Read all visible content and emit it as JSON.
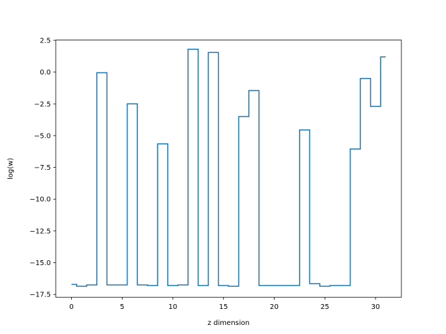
{
  "chart_data": {
    "type": "line",
    "drawstyle": "steps-mid",
    "xlabel": "z dimension",
    "ylabel": "log(w)",
    "xlim": [
      -1.55,
      32.55
    ],
    "ylim": [
      -17.72,
      2.52
    ],
    "xticks": [
      0,
      5,
      10,
      15,
      20,
      25,
      30
    ],
    "xtick_labels": [
      "0",
      "5",
      "10",
      "15",
      "20",
      "25",
      "30"
    ],
    "yticks": [
      2.5,
      0.0,
      -2.5,
      -5.0,
      -7.5,
      -10.0,
      -12.5,
      -15.0,
      -17.5
    ],
    "ytick_labels": [
      "2.5",
      "0.0",
      "−2.5",
      "−5.0",
      "−7.5",
      "−10.0",
      "−12.5",
      "−15.0",
      "−17.5"
    ],
    "grid": false,
    "color": "#1f77b4",
    "x": [
      0,
      1,
      2,
      3,
      4,
      5,
      6,
      7,
      8,
      9,
      10,
      11,
      12,
      13,
      14,
      15,
      16,
      17,
      18,
      19,
      20,
      21,
      22,
      23,
      24,
      25,
      26,
      27,
      28,
      29,
      30,
      31
    ],
    "values": [
      -16.7,
      -16.85,
      -16.75,
      -0.05,
      -16.75,
      -16.75,
      -2.5,
      -16.75,
      -16.8,
      -5.65,
      -16.8,
      -16.75,
      1.8,
      -16.8,
      1.55,
      -16.8,
      -16.85,
      -3.5,
      -1.45,
      -16.8,
      -16.8,
      -16.8,
      -16.8,
      -4.55,
      -16.65,
      -16.85,
      -16.8,
      -16.8,
      -6.05,
      -0.5,
      -2.7,
      1.2
    ]
  }
}
